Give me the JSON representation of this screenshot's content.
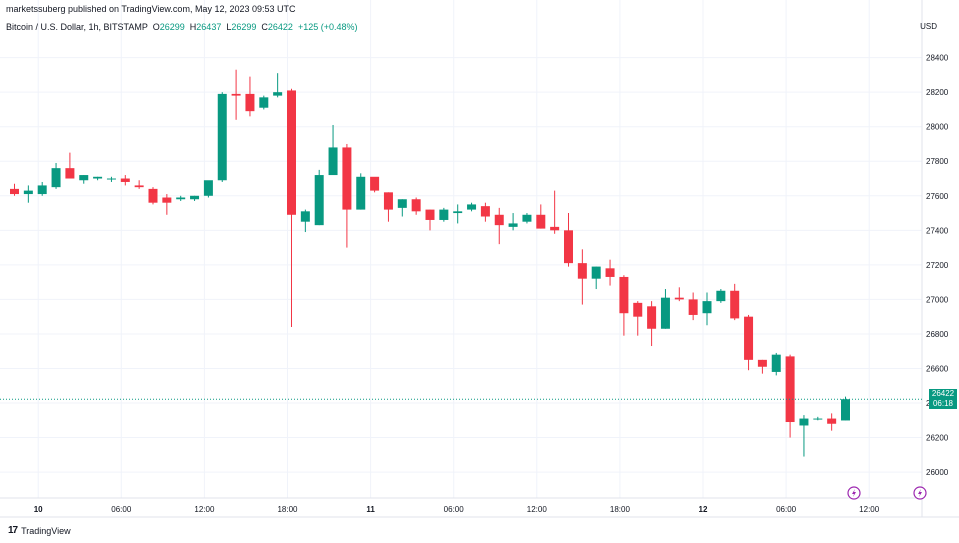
{
  "header": {
    "publisher": "marketssuberg published on TradingView.com, May 12, 2023 09:53 UTC",
    "symbol": "Bitcoin / U.S. Dollar, 1h, BITSTAMP",
    "open_label": "O",
    "open_value": "26299",
    "high_label": "H",
    "high_value": "26437",
    "low_label": "L",
    "low_value": "26299",
    "close_label": "C",
    "close_value": "26422",
    "change": "+125 (+0.48%)",
    "currency": "USD"
  },
  "price_badge": {
    "price": "26422",
    "countdown": "06:18"
  },
  "branding": {
    "logo_text": "TradingView"
  },
  "colors": {
    "up": "#089981",
    "down": "#f23645",
    "grid": "#e0e3eb",
    "text": "#131722"
  },
  "chart_data": {
    "type": "candlestick",
    "title": "",
    "ylim": [
      25850,
      28560
    ],
    "y_ticks": [
      "28400",
      "28200",
      "28000",
      "27800",
      "27600",
      "27400",
      "27200",
      "27000",
      "26800",
      "26600",
      "26400",
      "26200",
      "26000"
    ],
    "x_ticks": [
      {
        "label": "10",
        "bold": true,
        "index": 2
      },
      {
        "label": "06:00",
        "bold": false,
        "index": 8
      },
      {
        "label": "12:00",
        "bold": false,
        "index": 14
      },
      {
        "label": "18:00",
        "bold": false,
        "index": 20
      },
      {
        "label": "11",
        "bold": true,
        "index": 26
      },
      {
        "label": "06:00",
        "bold": false,
        "index": 32
      },
      {
        "label": "12:00",
        "bold": false,
        "index": 38
      },
      {
        "label": "18:00",
        "bold": false,
        "index": 44
      },
      {
        "label": "12",
        "bold": true,
        "index": 50
      },
      {
        "label": "06:00",
        "bold": false,
        "index": 56
      },
      {
        "label": "12:00",
        "bold": false,
        "index": 62
      }
    ],
    "last_price": 26422,
    "candles": [
      {
        "o": 27640,
        "h": 27670,
        "l": 27600,
        "c": 27610
      },
      {
        "o": 27610,
        "h": 27660,
        "l": 27560,
        "c": 27630
      },
      {
        "o": 27610,
        "h": 27680,
        "l": 27600,
        "c": 27660
      },
      {
        "o": 27650,
        "h": 27790,
        "l": 27640,
        "c": 27760
      },
      {
        "o": 27760,
        "h": 27850,
        "l": 27710,
        "c": 27700
      },
      {
        "o": 27690,
        "h": 27720,
        "l": 27670,
        "c": 27720
      },
      {
        "o": 27700,
        "h": 27710,
        "l": 27690,
        "c": 27710
      },
      {
        "o": 27700,
        "h": 27710,
        "l": 27680,
        "c": 27700
      },
      {
        "o": 27700,
        "h": 27720,
        "l": 27660,
        "c": 27680
      },
      {
        "o": 27660,
        "h": 27690,
        "l": 27640,
        "c": 27650
      },
      {
        "o": 27640,
        "h": 27650,
        "l": 27550,
        "c": 27560
      },
      {
        "o": 27590,
        "h": 27610,
        "l": 27490,
        "c": 27560
      },
      {
        "o": 27580,
        "h": 27600,
        "l": 27570,
        "c": 27590
      },
      {
        "o": 27580,
        "h": 27600,
        "l": 27570,
        "c": 27600
      },
      {
        "o": 27600,
        "h": 27680,
        "l": 27590,
        "c": 27690
      },
      {
        "o": 27690,
        "h": 28200,
        "l": 27680,
        "c": 28190
      },
      {
        "o": 28190,
        "h": 28330,
        "l": 28040,
        "c": 28180
      },
      {
        "o": 28190,
        "h": 28290,
        "l": 28060,
        "c": 28090
      },
      {
        "o": 28110,
        "h": 28180,
        "l": 28100,
        "c": 28170
      },
      {
        "o": 28180,
        "h": 28310,
        "l": 28170,
        "c": 28200
      },
      {
        "o": 28210,
        "h": 28220,
        "l": 26840,
        "c": 27490
      },
      {
        "o": 27450,
        "h": 27520,
        "l": 27390,
        "c": 27510
      },
      {
        "o": 27430,
        "h": 27750,
        "l": 27430,
        "c": 27720
      },
      {
        "o": 27720,
        "h": 28010,
        "l": 27730,
        "c": 27880
      },
      {
        "o": 27880,
        "h": 27900,
        "l": 27300,
        "c": 27520
      },
      {
        "o": 27520,
        "h": 27730,
        "l": 27520,
        "c": 27710
      },
      {
        "o": 27710,
        "h": 27700,
        "l": 27620,
        "c": 27630
      },
      {
        "o": 27620,
        "h": 27620,
        "l": 27450,
        "c": 27520
      },
      {
        "o": 27530,
        "h": 27580,
        "l": 27480,
        "c": 27580
      },
      {
        "o": 27580,
        "h": 27590,
        "l": 27490,
        "c": 27510
      },
      {
        "o": 27520,
        "h": 27520,
        "l": 27400,
        "c": 27460
      },
      {
        "o": 27460,
        "h": 27530,
        "l": 27450,
        "c": 27520
      },
      {
        "o": 27500,
        "h": 27550,
        "l": 27440,
        "c": 27510
      },
      {
        "o": 27520,
        "h": 27560,
        "l": 27510,
        "c": 27550
      },
      {
        "o": 27540,
        "h": 27560,
        "l": 27450,
        "c": 27480
      },
      {
        "o": 27490,
        "h": 27530,
        "l": 27320,
        "c": 27430
      },
      {
        "o": 27420,
        "h": 27500,
        "l": 27400,
        "c": 27440
      },
      {
        "o": 27450,
        "h": 27500,
        "l": 27440,
        "c": 27490
      },
      {
        "o": 27490,
        "h": 27550,
        "l": 27410,
        "c": 27410
      },
      {
        "o": 27420,
        "h": 27630,
        "l": 27380,
        "c": 27400
      },
      {
        "o": 27400,
        "h": 27500,
        "l": 27190,
        "c": 27210
      },
      {
        "o": 27210,
        "h": 27290,
        "l": 26970,
        "c": 27120
      },
      {
        "o": 27120,
        "h": 27190,
        "l": 27060,
        "c": 27190
      },
      {
        "o": 27180,
        "h": 27230,
        "l": 27080,
        "c": 27130
      },
      {
        "o": 27130,
        "h": 27140,
        "l": 26790,
        "c": 26920
      },
      {
        "o": 26980,
        "h": 26990,
        "l": 26790,
        "c": 26900
      },
      {
        "o": 26960,
        "h": 26990,
        "l": 26730,
        "c": 26830
      },
      {
        "o": 26830,
        "h": 27060,
        "l": 26830,
        "c": 27010
      },
      {
        "o": 27010,
        "h": 27070,
        "l": 26990,
        "c": 27000
      },
      {
        "o": 27000,
        "h": 27040,
        "l": 26880,
        "c": 26910
      },
      {
        "o": 26920,
        "h": 27040,
        "l": 26850,
        "c": 26990
      },
      {
        "o": 26990,
        "h": 27060,
        "l": 26980,
        "c": 27050
      },
      {
        "o": 27050,
        "h": 27090,
        "l": 26880,
        "c": 26890
      },
      {
        "o": 26900,
        "h": 26910,
        "l": 26590,
        "c": 26650
      },
      {
        "o": 26650,
        "h": 26650,
        "l": 26570,
        "c": 26610
      },
      {
        "o": 26580,
        "h": 26690,
        "l": 26560,
        "c": 26680
      },
      {
        "o": 26670,
        "h": 26680,
        "l": 26200,
        "c": 26290
      },
      {
        "o": 26270,
        "h": 26330,
        "l": 26090,
        "c": 26310
      },
      {
        "o": 26310,
        "h": 26320,
        "l": 26300,
        "c": 26310
      },
      {
        "o": 26310,
        "h": 26340,
        "l": 26240,
        "c": 26280
      },
      {
        "o": 26299,
        "h": 26437,
        "l": 26299,
        "c": 26422
      }
    ]
  }
}
